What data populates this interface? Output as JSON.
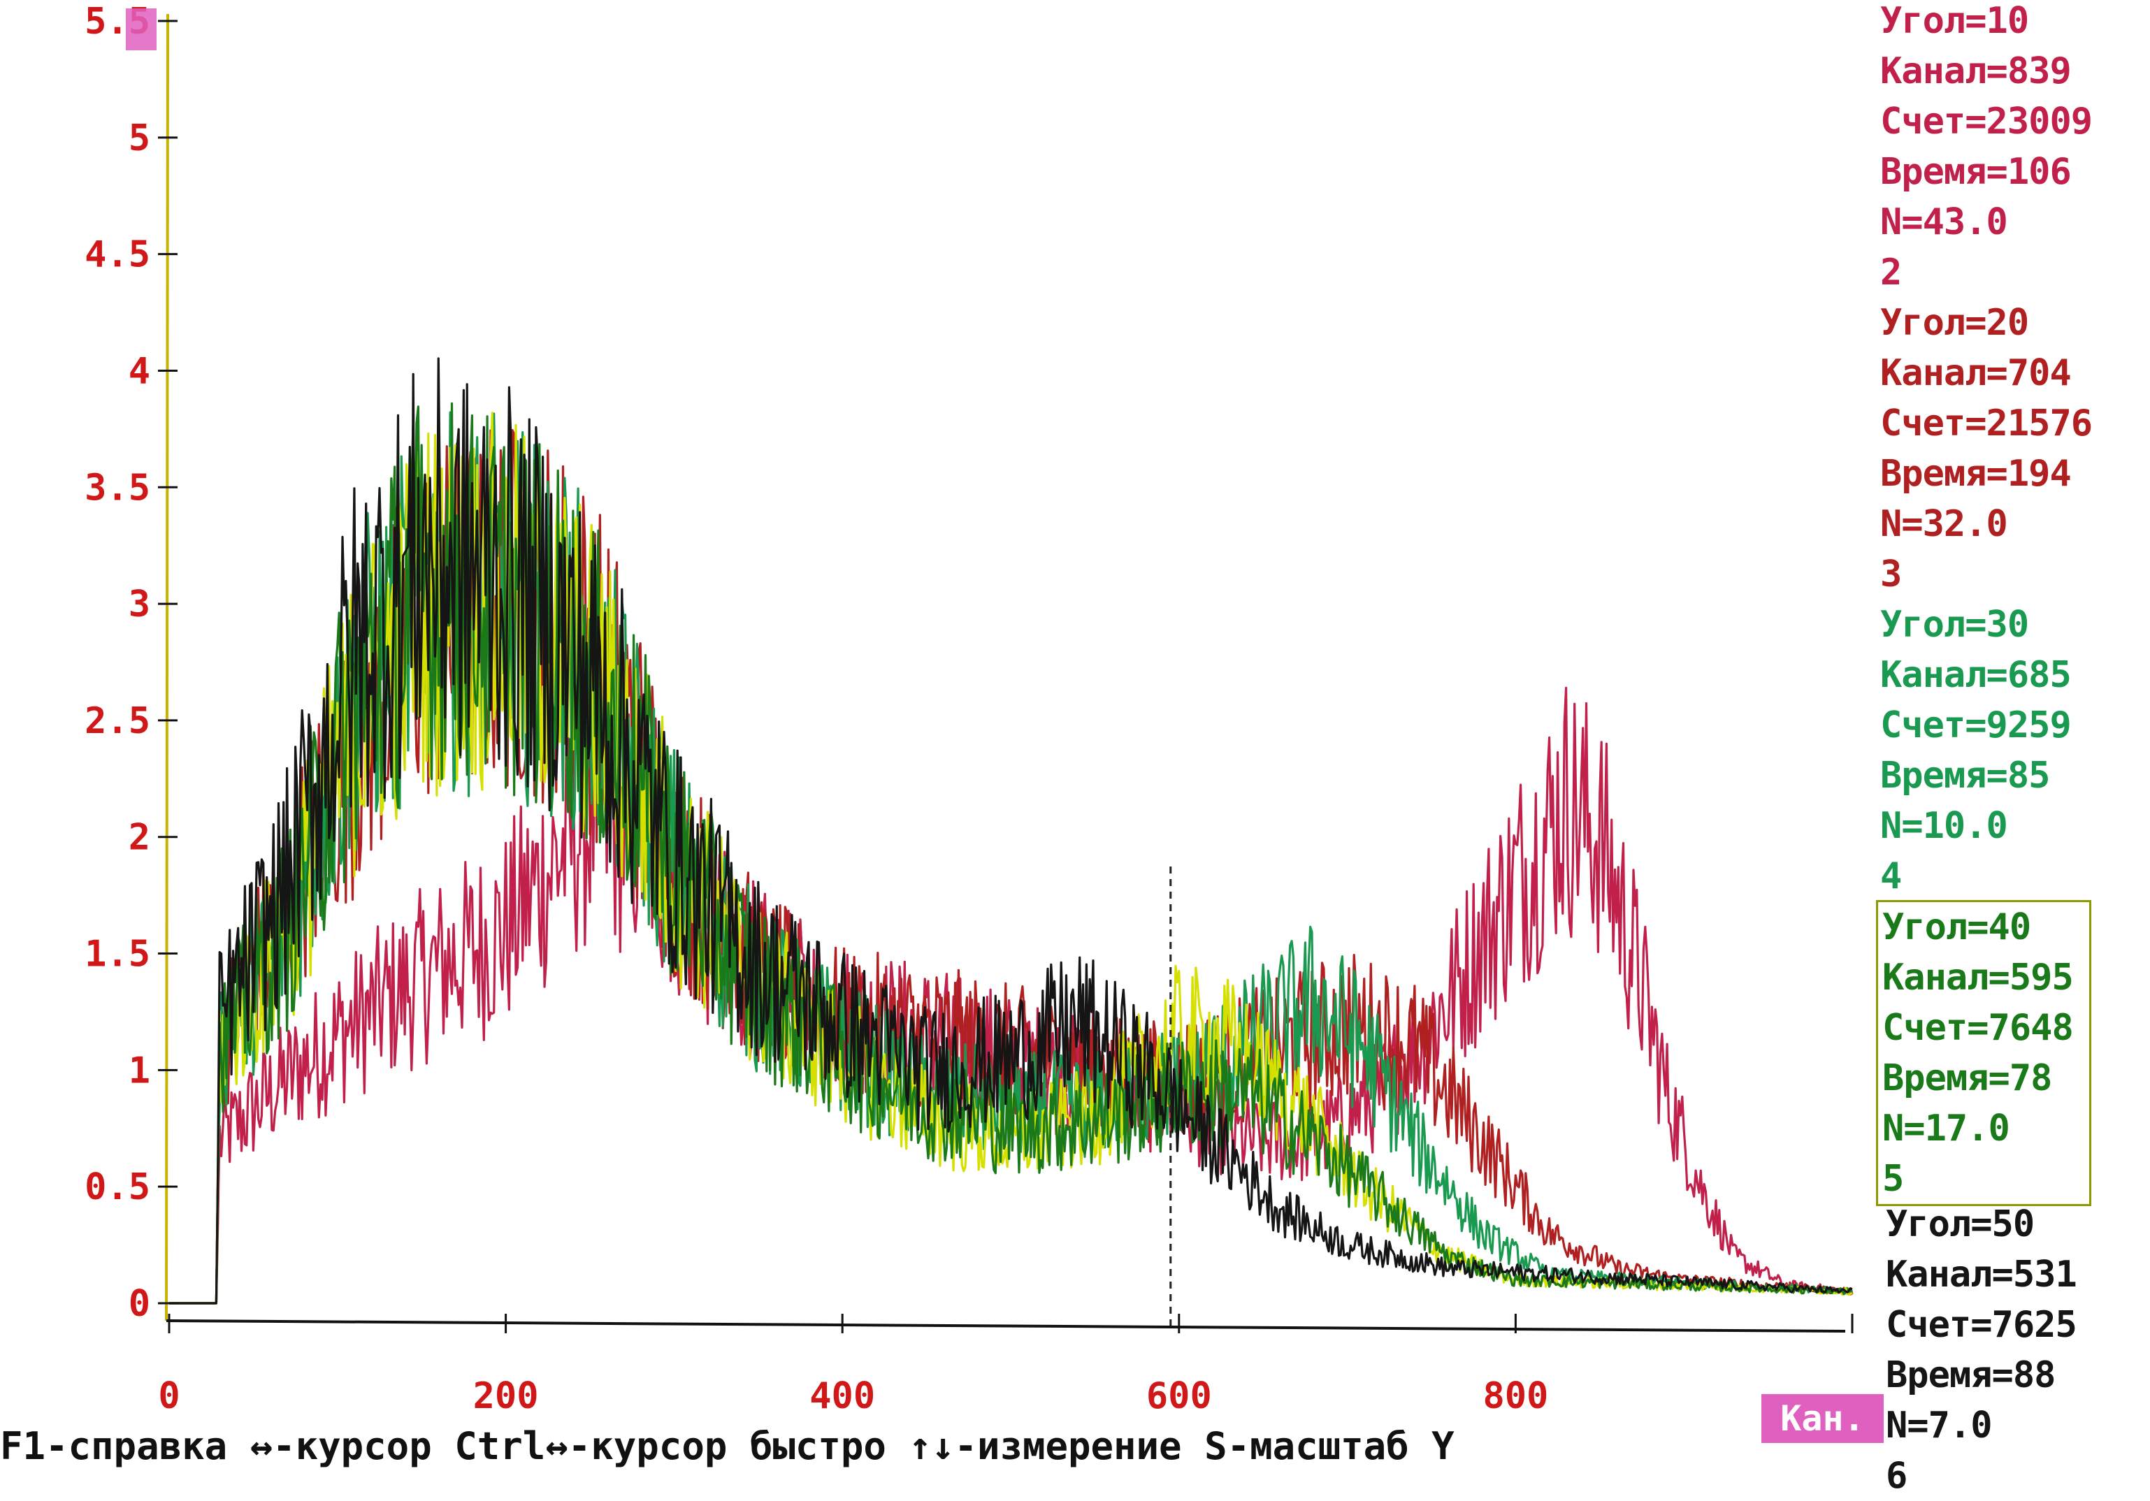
{
  "chart_data": {
    "type": "line",
    "title": "",
    "xlabel": "",
    "ylabel": "",
    "xlim": [
      0,
      1000
    ],
    "ylim": [
      0,
      5.5
    ],
    "x_ticks": [
      "0",
      "200",
      "400",
      "600",
      "800"
    ],
    "y_ticks": [
      "0",
      "0.5",
      "1",
      "1.5",
      "2",
      "2.5",
      "3",
      "3.5",
      "4",
      "4.5",
      "5",
      "5.5"
    ],
    "cursor_channel": 595,
    "series": [
      {
        "color": "#c0204a",
        "profile": [
          [
            0,
            0
          ],
          [
            28,
            0
          ],
          [
            30,
            0.7
          ],
          [
            60,
            0.9
          ],
          [
            100,
            1.15
          ],
          [
            150,
            1.4
          ],
          [
            200,
            1.6
          ],
          [
            230,
            1.9
          ],
          [
            250,
            2.1
          ],
          [
            280,
            2.0
          ],
          [
            320,
            1.6
          ],
          [
            360,
            1.35
          ],
          [
            400,
            1.22
          ],
          [
            450,
            1.15
          ],
          [
            500,
            1.05
          ],
          [
            550,
            0.95
          ],
          [
            600,
            0.85
          ],
          [
            640,
            0.7
          ],
          [
            680,
            0.7
          ],
          [
            720,
            0.9
          ],
          [
            760,
            1.3
          ],
          [
            800,
            1.8
          ],
          [
            830,
            2.15
          ],
          [
            850,
            2.0
          ],
          [
            870,
            1.5
          ],
          [
            890,
            0.9
          ],
          [
            910,
            0.5
          ],
          [
            930,
            0.2
          ],
          [
            960,
            0.08
          ],
          [
            1000,
            0.05
          ]
        ]
      },
      {
        "color": "#b02020",
        "profile": [
          [
            0,
            0
          ],
          [
            28,
            0
          ],
          [
            30,
            1.1
          ],
          [
            70,
            1.7
          ],
          [
            110,
            2.4
          ],
          [
            150,
            2.9
          ],
          [
            200,
            3.0
          ],
          [
            240,
            2.9
          ],
          [
            270,
            2.5
          ],
          [
            300,
            1.9
          ],
          [
            350,
            1.4
          ],
          [
            400,
            1.2
          ],
          [
            450,
            1.15
          ],
          [
            520,
            1.05
          ],
          [
            580,
            0.95
          ],
          [
            620,
            1.0
          ],
          [
            660,
            1.1
          ],
          [
            700,
            1.2
          ],
          [
            740,
            1.1
          ],
          [
            780,
            0.7
          ],
          [
            820,
            0.3
          ],
          [
            860,
            0.15
          ],
          [
            900,
            0.1
          ],
          [
            1000,
            0.05
          ]
        ]
      },
      {
        "color": "#1a9a50",
        "profile": [
          [
            0,
            0
          ],
          [
            28,
            0
          ],
          [
            30,
            1.1
          ],
          [
            70,
            1.6
          ],
          [
            110,
            2.6
          ],
          [
            150,
            3.0
          ],
          [
            200,
            3.0
          ],
          [
            240,
            2.8
          ],
          [
            270,
            2.4
          ],
          [
            300,
            1.9
          ],
          [
            350,
            1.35
          ],
          [
            400,
            1.1
          ],
          [
            450,
            0.9
          ],
          [
            500,
            0.85
          ],
          [
            550,
            0.85
          ],
          [
            600,
            0.95
          ],
          [
            640,
            1.1
          ],
          [
            680,
            1.3
          ],
          [
            710,
            1.1
          ],
          [
            740,
            0.7
          ],
          [
            780,
            0.3
          ],
          [
            820,
            0.12
          ],
          [
            1000,
            0.05
          ]
        ]
      },
      {
        "color": "#d6e000",
        "profile": [
          [
            0,
            0
          ],
          [
            28,
            0
          ],
          [
            30,
            1.1
          ],
          [
            70,
            1.6
          ],
          [
            110,
            2.5
          ],
          [
            150,
            3.0
          ],
          [
            200,
            3.0
          ],
          [
            240,
            2.8
          ],
          [
            270,
            2.4
          ],
          [
            300,
            1.9
          ],
          [
            350,
            1.35
          ],
          [
            400,
            1.05
          ],
          [
            450,
            0.8
          ],
          [
            500,
            0.7
          ],
          [
            550,
            0.8
          ],
          [
            600,
            1.15
          ],
          [
            630,
            1.1
          ],
          [
            670,
            0.85
          ],
          [
            710,
            0.5
          ],
          [
            760,
            0.2
          ],
          [
            800,
            0.1
          ],
          [
            1000,
            0.05
          ]
        ]
      },
      {
        "color": "#1a7a1a",
        "profile": [
          [
            0,
            0
          ],
          [
            28,
            0
          ],
          [
            30,
            1.1
          ],
          [
            70,
            1.6
          ],
          [
            110,
            2.6
          ],
          [
            150,
            3.1
          ],
          [
            200,
            3.0
          ],
          [
            240,
            2.8
          ],
          [
            270,
            2.4
          ],
          [
            300,
            1.9
          ],
          [
            350,
            1.35
          ],
          [
            400,
            1.05
          ],
          [
            450,
            0.85
          ],
          [
            500,
            0.75
          ],
          [
            550,
            0.78
          ],
          [
            600,
            0.9
          ],
          [
            640,
            0.9
          ],
          [
            680,
            0.7
          ],
          [
            720,
            0.45
          ],
          [
            760,
            0.2
          ],
          [
            800,
            0.1
          ],
          [
            1000,
            0.05
          ]
        ]
      },
      {
        "color": "#151515",
        "profile": [
          [
            0,
            0
          ],
          [
            28,
            0
          ],
          [
            30,
            1.2
          ],
          [
            70,
            1.8
          ],
          [
            110,
            2.8
          ],
          [
            150,
            3.2
          ],
          [
            200,
            3.1
          ],
          [
            240,
            2.8
          ],
          [
            270,
            2.4
          ],
          [
            300,
            1.9
          ],
          [
            350,
            1.45
          ],
          [
            400,
            1.2
          ],
          [
            450,
            1.0
          ],
          [
            500,
            1.05
          ],
          [
            540,
            1.2
          ],
          [
            580,
            1.0
          ],
          [
            620,
            0.7
          ],
          [
            660,
            0.4
          ],
          [
            700,
            0.25
          ],
          [
            760,
            0.15
          ],
          [
            1000,
            0.05
          ]
        ]
      }
    ]
  },
  "panel": {
    "blocks": [
      {
        "color": "#c0204a",
        "lines": [
          "Угол=10",
          "Канал=839",
          "Счет=23009",
          "Время=106",
          "N=43.0",
          "2"
        ]
      },
      {
        "color": "#b02020",
        "lines": [
          "Угол=20",
          "Канал=704",
          "Счет=21576",
          "Время=194",
          "N=32.0",
          "3"
        ]
      },
      {
        "color": "#1a9a50",
        "lines": [
          "Угол=30",
          "Канал=685",
          "Счет=9259",
          "Время=85",
          "N=10.0",
          "4"
        ]
      },
      {
        "color": "#1a7a1a",
        "lines": [
          "Угол=40",
          "Канал=595",
          "Счет=7648",
          "Время=78",
          "N=17.0",
          "5"
        ]
      },
      {
        "color": "#151515",
        "lines": [
          "Угол=50",
          "Канал=531",
          "Счет=7625",
          "Время=88",
          "N=7.0",
          "6"
        ]
      }
    ]
  },
  "status_bar": {
    "text": "F1-справка ↔-курсор Ctrl↔-курсор быстро ↑↓-измерение S-масштаб Y",
    "kan_label": "Кан."
  },
  "colors": {
    "tick_label": "#d01818",
    "axis": "#111111",
    "y_axis": "#c8b400",
    "cursor_marker": "#e060c0"
  }
}
